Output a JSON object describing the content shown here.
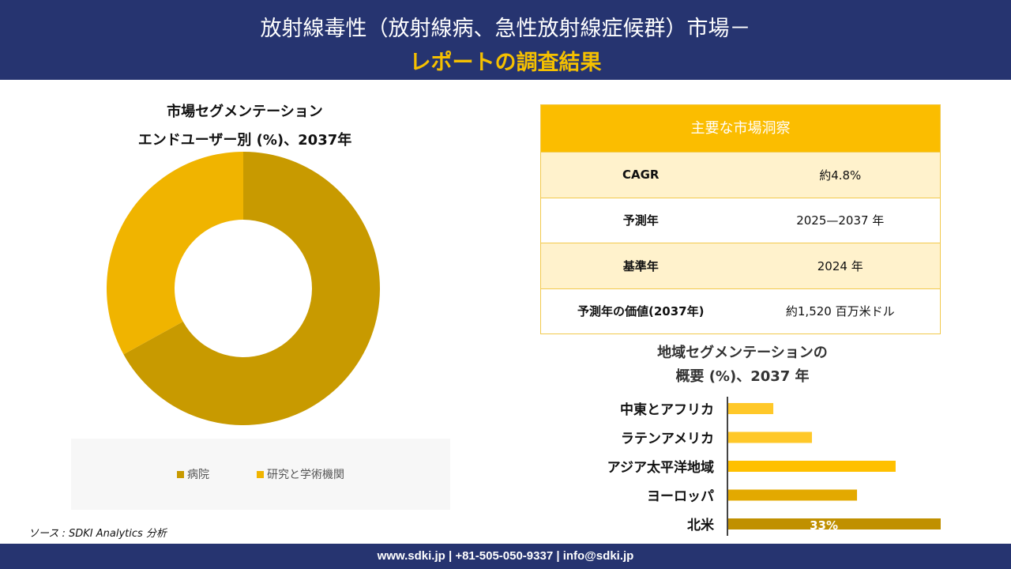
{
  "header": {
    "title": "放射線毒性（放射線病、急性放射線症候群）市場－",
    "subtitle": "レポートの調査結果"
  },
  "donut": {
    "title1": "市場セグメンテーション",
    "title2": "エンドユーザー別 (%)、2037年"
  },
  "table": {
    "header": "主要な市場洞察",
    "rows": [
      {
        "k": "CAGR",
        "v": "約4.8%"
      },
      {
        "k": "予測年",
        "v": "2025—2037 年"
      },
      {
        "k": "基準年",
        "v": "2024 年"
      },
      {
        "k": "予測年の価値(2037年)",
        "v": "約1,520 百万米ドル"
      }
    ]
  },
  "bar_title": {
    "line1": "地域セグメンテーションの",
    "line2": "概要 (%)、2037 年"
  },
  "source": "ソース : SDKI Analytics 分析",
  "footer": "www.sdki.jp | +81-505-050-9337 | info@sdki.jp",
  "chart_data": [
    {
      "type": "pie",
      "title": "市場セグメンテーション エンドユーザー別 (%)、2037年",
      "categories": [
        "病院",
        "研究と学術機関"
      ],
      "values": [
        67,
        33
      ],
      "colors": [
        "#c89a00",
        "#f0b400"
      ],
      "legend": "bottom"
    },
    {
      "type": "bar",
      "orientation": "horizontal",
      "title": "地域セグメンテーションの概要 (%)、2037 年",
      "categories": [
        "中東とアフリカ",
        "ラテンアメリカ",
        "アジア太平洋地域",
        "ヨーロッパ",
        "北米"
      ],
      "values": [
        7,
        13,
        26,
        20,
        33
      ],
      "data_labels": [
        "",
        "",
        "",
        "",
        "33%"
      ],
      "colors": [
        "#ffc829",
        "#ffc829",
        "#ffc000",
        "#e3a900",
        "#c09000"
      ],
      "xlim": [
        0,
        33
      ]
    }
  ]
}
